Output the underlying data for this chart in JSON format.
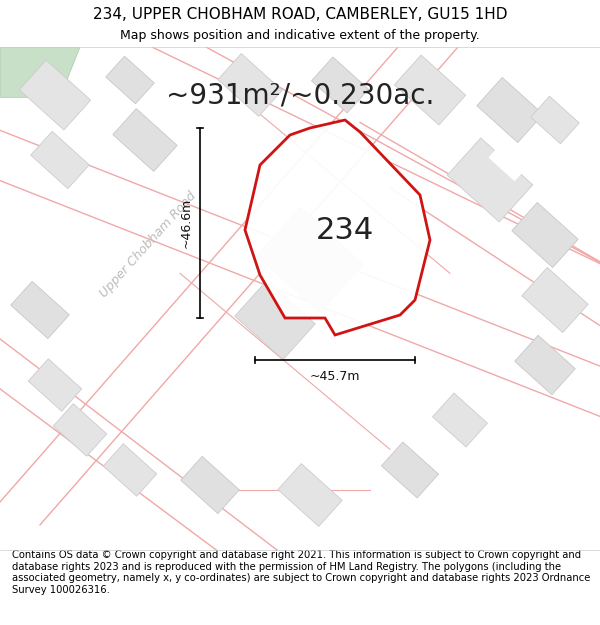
{
  "title": "234, UPPER CHOBHAM ROAD, CAMBERLEY, GU15 1HD",
  "subtitle": "Map shows position and indicative extent of the property.",
  "area_text": "~931m²/~0.230ac.",
  "property_number": "234",
  "dim_width": "~45.7m",
  "dim_height": "~46.6m",
  "road_label": "Upper Chobham Road",
  "footer": "Contains OS data © Crown copyright and database right 2021. This information is subject to Crown copyright and database rights 2023 and is reproduced with the permission of HM Land Registry. The polygons (including the associated geometry, namely x, y co-ordinates) are subject to Crown copyright and database rights 2023 Ordnance Survey 100026316.",
  "map_bg": "#ffffff",
  "property_fill": "#ffffff",
  "property_edge": "#cc0000",
  "road_line_color": "#f0b8b8",
  "road_fill_color": "#f8e8e8",
  "building_fill": "#e0e0e0",
  "building_edge": "#c8c8c8",
  "green_fill": "#d0e8d0",
  "dim_line_color": "#111111",
  "road_label_color": "#bbbbbb",
  "title_fontsize": 11,
  "subtitle_fontsize": 9,
  "area_fontsize": 20,
  "number_fontsize": 22,
  "footer_fontsize": 7.2,
  "road_label_fontsize": 9,
  "dim_label_fontsize": 9
}
